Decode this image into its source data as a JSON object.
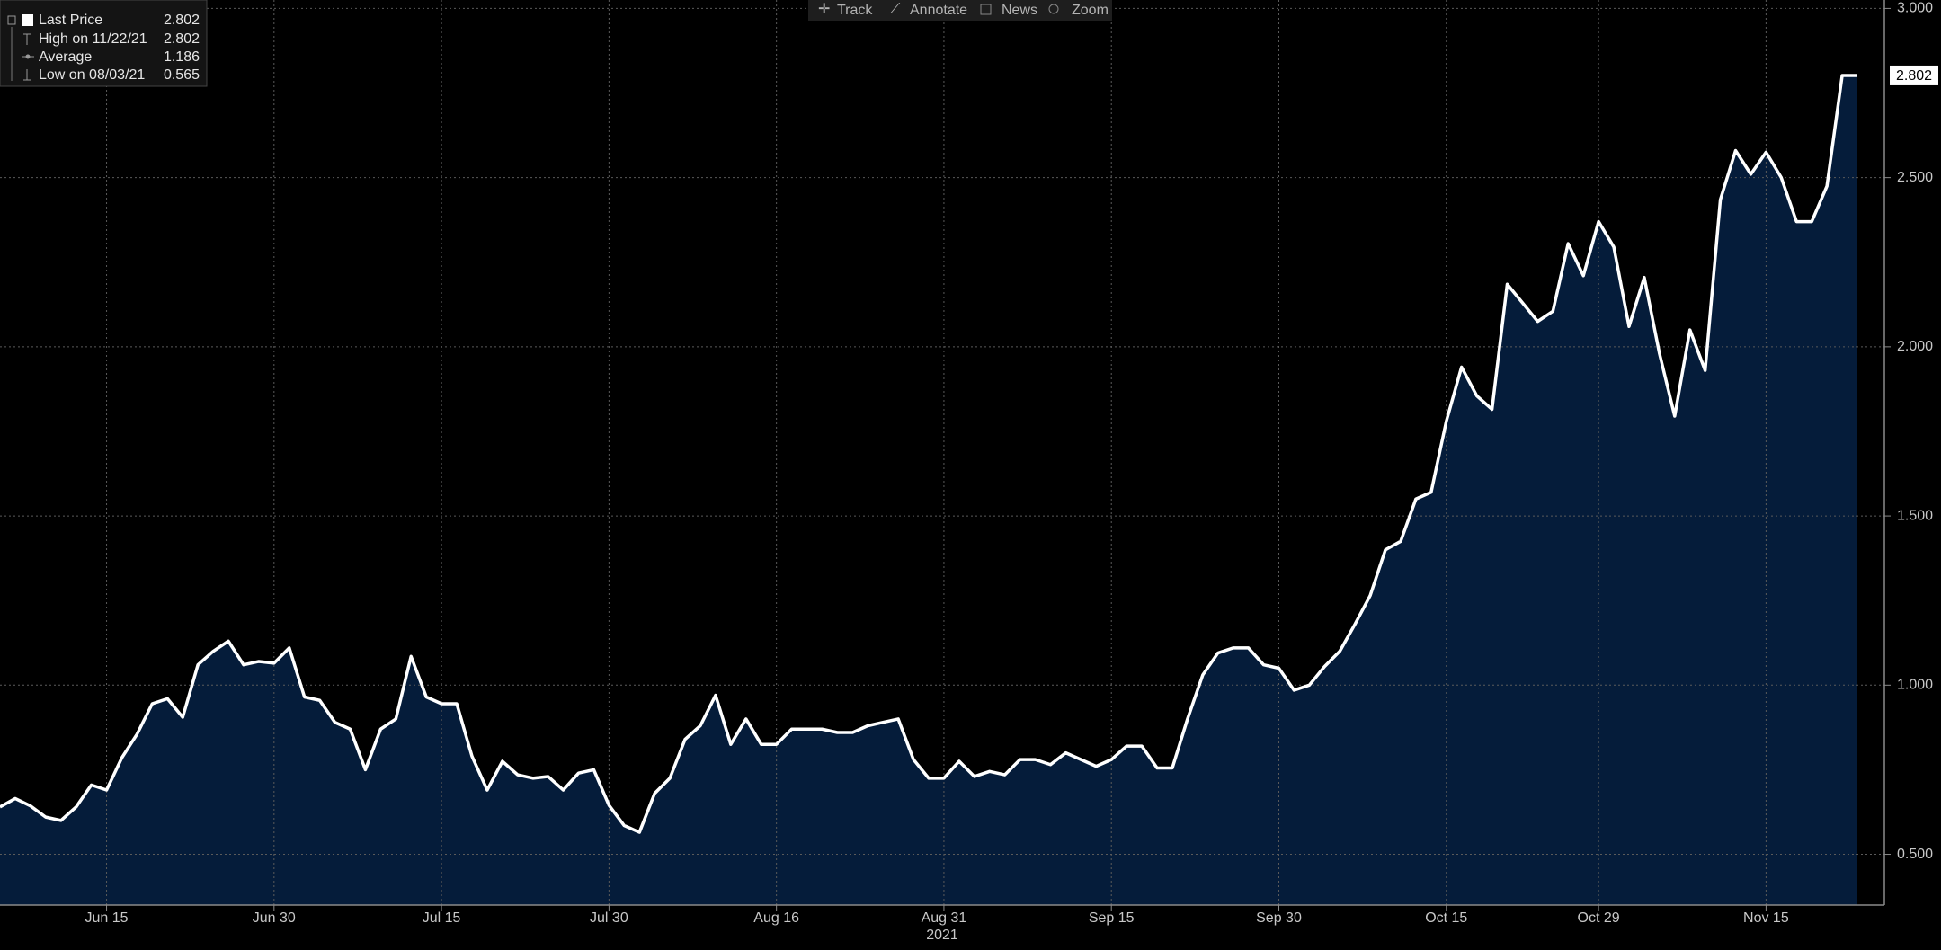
{
  "toolbar": [
    "Track",
    "Annotate",
    "News",
    "Zoom"
  ],
  "chart_data": {
    "type": "area",
    "xlabel": "2021",
    "categories": [
      null,
      null,
      null,
      null,
      null,
      null,
      null,
      "Jun 15",
      null,
      null,
      null,
      null,
      null,
      null,
      null,
      null,
      null,
      null,
      "Jun 30",
      null,
      null,
      null,
      null,
      null,
      null,
      null,
      null,
      null,
      null,
      "Jul 15",
      null,
      null,
      null,
      null,
      null,
      null,
      null,
      null,
      null,
      null,
      "Jul 30",
      null,
      null,
      null,
      null,
      null,
      null,
      null,
      null,
      null,
      null,
      "Aug 16",
      null,
      null,
      null,
      null,
      null,
      null,
      null,
      null,
      null,
      null,
      "Aug 31",
      null,
      null,
      null,
      null,
      null,
      null,
      null,
      null,
      null,
      null,
      "Sep 15",
      null,
      null,
      null,
      null,
      null,
      null,
      null,
      null,
      null,
      null,
      "Sep 30",
      null,
      null,
      null,
      null,
      null,
      null,
      null,
      null,
      null,
      null,
      "Oct 15",
      null,
      null,
      null,
      null,
      null,
      null,
      null,
      null,
      null,
      "Oct 29",
      null,
      null,
      null,
      null,
      null,
      null,
      null,
      null,
      null,
      null,
      "Nov 15",
      null,
      null,
      null,
      null,
      null,
      null
    ],
    "series": [
      {
        "name": "Last Price",
        "color": "#ffffff",
        "fill": "#051c3a",
        "values": [
          0.64,
          0.665,
          0.643,
          0.61,
          0.6,
          0.64,
          0.705,
          0.69,
          0.785,
          0.855,
          0.945,
          0.96,
          0.905,
          1.06,
          1.1,
          1.13,
          1.06,
          1.07,
          1.065,
          1.11,
          0.965,
          0.955,
          0.89,
          0.87,
          0.75,
          0.87,
          0.9,
          1.085,
          0.965,
          0.945,
          0.945,
          0.79,
          0.69,
          0.775,
          0.735,
          0.725,
          0.73,
          0.69,
          0.74,
          0.75,
          0.645,
          0.585,
          0.565,
          0.68,
          0.725,
          0.84,
          0.88,
          0.97,
          0.825,
          0.9,
          0.825,
          0.825,
          0.87,
          0.87,
          0.87,
          0.86,
          0.86,
          0.88,
          0.89,
          0.9,
          0.78,
          0.725,
          0.725,
          0.775,
          0.73,
          0.745,
          0.735,
          0.78,
          0.78,
          0.765,
          0.8,
          0.78,
          0.76,
          0.78,
          0.82,
          0.82,
          0.755,
          0.755,
          0.9,
          1.03,
          1.095,
          1.11,
          1.11,
          1.06,
          1.05,
          0.985,
          1.0,
          1.055,
          1.1,
          1.18,
          1.265,
          1.4,
          1.425,
          1.55,
          1.57,
          1.78,
          1.94,
          1.855,
          1.815,
          2.185,
          2.13,
          2.075,
          2.105,
          2.305,
          2.21,
          2.37,
          2.295,
          2.06,
          2.205,
          1.98,
          1.795,
          2.05,
          1.93,
          2.435,
          2.58,
          2.51,
          2.575,
          2.5,
          2.37,
          2.37,
          2.475,
          2.802,
          2.802
        ]
      }
    ],
    "last_value": 2.802,
    "stats": [
      {
        "label": "High on 11/22/21",
        "value": 2.802
      },
      {
        "label": "Average",
        "value": 1.186
      },
      {
        "label": "Low on 08/03/21",
        "value": 0.565
      }
    ],
    "ylim": [
      0.35,
      3.025
    ],
    "yticks": [
      {
        "value": 0.5,
        "label": "0.500"
      },
      {
        "value": 1.0,
        "label": "1.000"
      },
      {
        "value": 1.5,
        "label": "1.500"
      },
      {
        "value": 2.0,
        "label": "2.000"
      },
      {
        "value": 2.5,
        "label": "2.500"
      },
      {
        "value": 3.0,
        "label": "3.000"
      }
    ],
    "grid": true,
    "legend": "upper left"
  }
}
